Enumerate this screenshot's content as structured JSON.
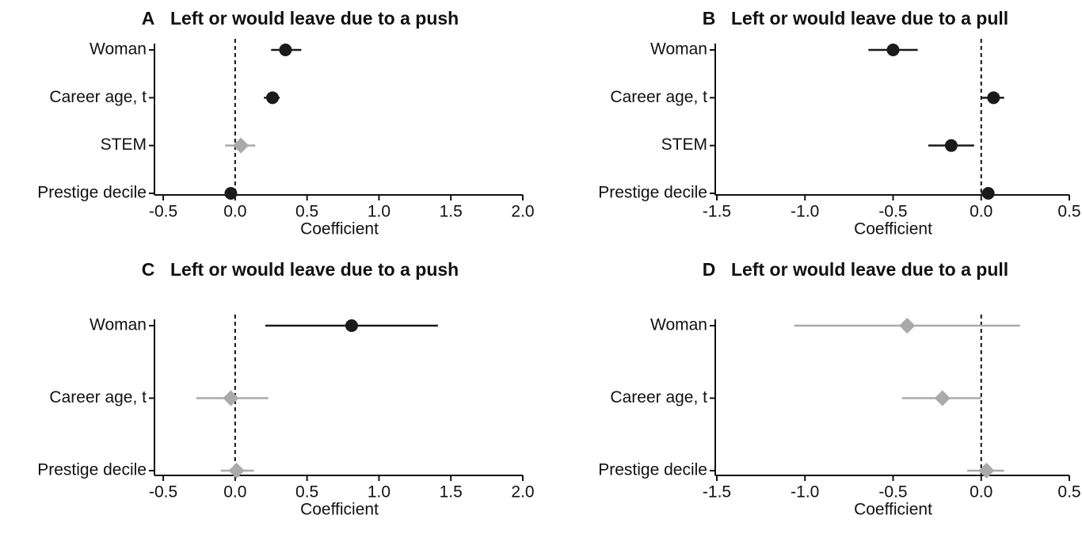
{
  "chart_data": [
    {
      "type": "forest",
      "label": "A",
      "title": "Left or would leave due to a push",
      "xlabel": "Coefficient",
      "categories": [
        "Woman",
        "Career age, t",
        "STEM",
        "Prestige decile"
      ],
      "values": [
        0.35,
        0.26,
        0.04,
        -0.03
      ],
      "ci_low": [
        0.25,
        0.2,
        -0.07,
        -0.05
      ],
      "ci_high": [
        0.46,
        0.31,
        0.14,
        -0.01
      ],
      "colors": [
        "#1a1a1a",
        "#1a1a1a",
        "#aaaaaa",
        "#1a1a1a"
      ],
      "markers": [
        "circle",
        "circle",
        "diamond",
        "circle"
      ],
      "xlim": [
        -0.55,
        2.0
      ],
      "xticks": [
        -0.5,
        {
          "value": 0,
          "label": "0.0"
        },
        0.5,
        {
          "value": 1,
          "label": "1.0"
        },
        1.5,
        {
          "value": 2,
          "label": "2.0"
        }
      ]
    },
    {
      "type": "forest",
      "label": "B",
      "title": "Left or would leave due to a pull",
      "xlabel": "Coefficient",
      "categories": [
        "Woman",
        "Career age, t",
        "STEM",
        "Prestige decile"
      ],
      "values": [
        -0.5,
        0.07,
        -0.17,
        0.04
      ],
      "ci_low": [
        -0.64,
        0.0,
        -0.3,
        0.0
      ],
      "ci_high": [
        -0.36,
        0.13,
        -0.04,
        0.07
      ],
      "colors": [
        "#1a1a1a",
        "#1a1a1a",
        "#1a1a1a",
        "#1a1a1a"
      ],
      "markers": [
        "circle",
        "circle",
        "circle",
        "circle"
      ],
      "xlim": [
        -1.5,
        0.5
      ],
      "xticks": [
        -1.5,
        {
          "value": -1,
          "label": "-1.0"
        },
        -0.5,
        {
          "value": 0,
          "label": "0.0"
        },
        0.5
      ]
    },
    {
      "type": "forest",
      "label": "C",
      "title": "Left or would leave due to a push",
      "xlabel": "Coefficient",
      "categories": [
        "Woman",
        "Career age, t",
        "Prestige decile"
      ],
      "values": [
        0.81,
        -0.03,
        0.01
      ],
      "ci_low": [
        0.21,
        -0.27,
        -0.1
      ],
      "ci_high": [
        1.41,
        0.23,
        0.13
      ],
      "colors": [
        "#1a1a1a",
        "#aaaaaa",
        "#aaaaaa"
      ],
      "markers": [
        "circle",
        "diamond",
        "diamond"
      ],
      "xlim": [
        -0.55,
        2.0
      ],
      "xticks": [
        -0.5,
        {
          "value": 0,
          "label": "0.0"
        },
        0.5,
        {
          "value": 1,
          "label": "1.0"
        },
        1.5,
        {
          "value": 2,
          "label": "2.0"
        }
      ]
    },
    {
      "type": "forest",
      "label": "D",
      "title": "Left or would leave due to a pull",
      "xlabel": "Coefficient",
      "categories": [
        "Woman",
        "Career age, t",
        "Prestige decile"
      ],
      "values": [
        -0.42,
        -0.22,
        0.03
      ],
      "ci_low": [
        -1.06,
        -0.45,
        -0.08
      ],
      "ci_high": [
        0.22,
        0.0,
        0.13
      ],
      "colors": [
        "#aaaaaa",
        "#aaaaaa",
        "#aaaaaa"
      ],
      "markers": [
        "diamond",
        "diamond",
        "diamond"
      ],
      "xlim": [
        -1.5,
        0.5
      ],
      "xticks": [
        -1.5,
        {
          "value": -1,
          "label": "-1.0"
        },
        -0.5,
        {
          "value": 0,
          "label": "0.0"
        },
        0.5
      ]
    }
  ]
}
